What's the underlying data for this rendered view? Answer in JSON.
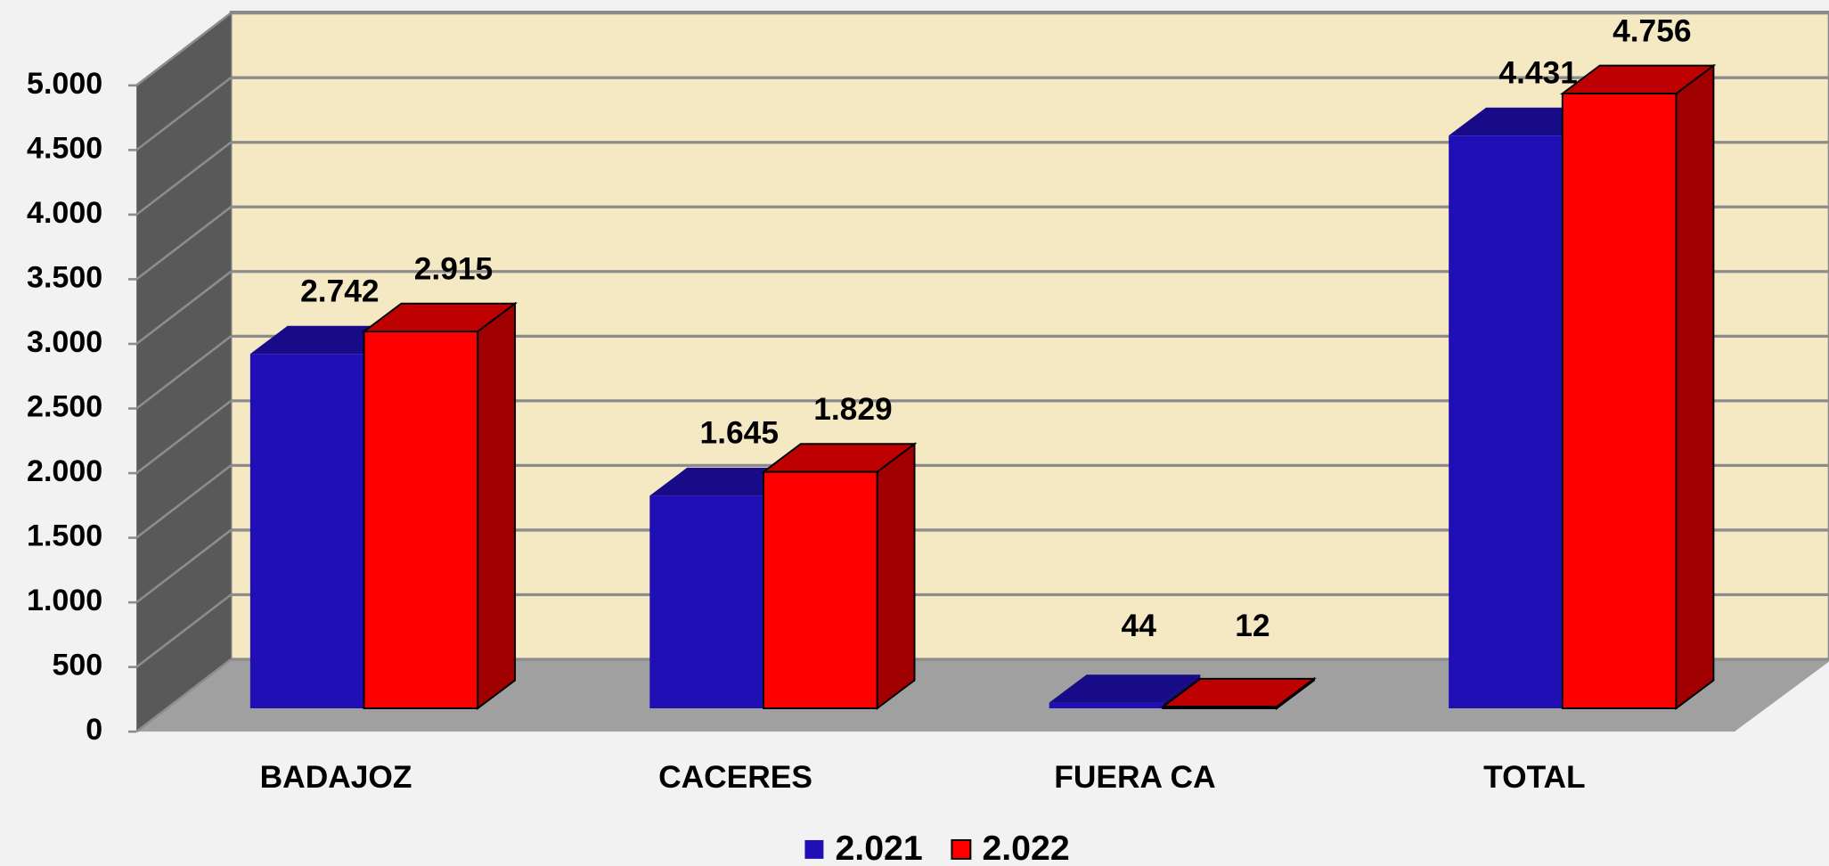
{
  "chart_data": {
    "type": "bar3d",
    "categories": [
      "BADAJOZ",
      "CACERES",
      "FUERA CA",
      "TOTAL"
    ],
    "series": [
      {
        "name": "2.021",
        "color": "#1f0fb5",
        "values": [
          2742,
          1645,
          44,
          4431
        ],
        "value_labels": [
          "2.742",
          "1.645",
          "44",
          "4.431"
        ]
      },
      {
        "name": "2.022",
        "color": "#ff0000",
        "values": [
          2915,
          1829,
          12,
          4756
        ],
        "value_labels": [
          "2.915",
          "1.829",
          "12",
          "4.756"
        ]
      }
    ],
    "ylim": [
      0,
      5000
    ],
    "yticks": [
      0,
      500,
      {
        "value": 1000,
        "label": "1.000"
      },
      {
        "value": 1500,
        "label": "1.500"
      },
      {
        "value": 2000,
        "label": "2.000"
      },
      {
        "value": 2500,
        "label": "2.500"
      },
      {
        "value": 3000,
        "label": "3.000"
      },
      {
        "value": 3500,
        "label": "3.500"
      },
      {
        "value": 4000,
        "label": "4.000"
      },
      {
        "value": 4500,
        "label": "4.500"
      },
      {
        "value": 5000,
        "label": "5.000"
      }
    ],
    "grid": true,
    "legend": "bottom"
  }
}
